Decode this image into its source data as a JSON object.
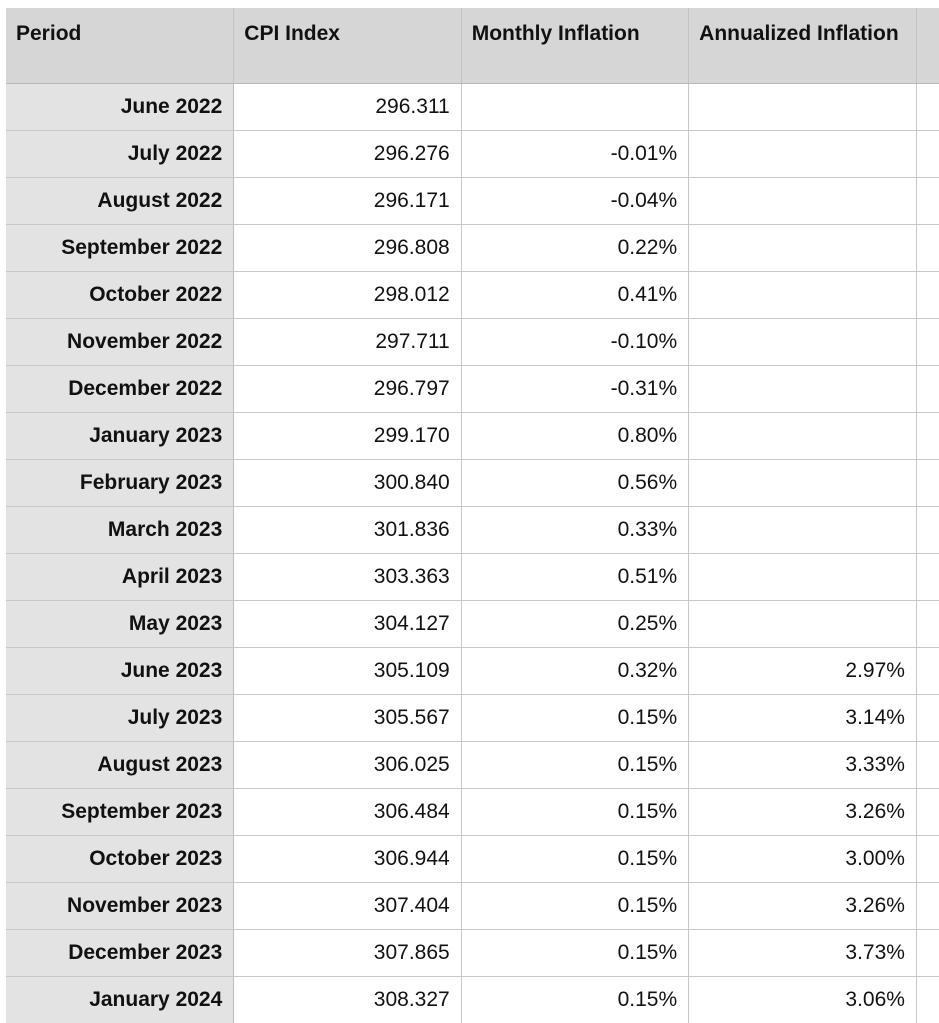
{
  "table": {
    "headers": [
      "Period",
      "CPI Index",
      "Monthly Inflation",
      "Annualized Inflation"
    ],
    "rows": [
      [
        "June 2022",
        "296.311",
        null,
        null
      ],
      [
        "July 2022",
        "296.276",
        "-0.01%",
        null
      ],
      [
        "August 2022",
        "296.171",
        "-0.04%",
        null
      ],
      [
        "September 2022",
        "296.808",
        "0.22%",
        null
      ],
      [
        "October 2022",
        "298.012",
        "0.41%",
        null
      ],
      [
        "November 2022",
        "297.711",
        "-0.10%",
        null
      ],
      [
        "December 2022",
        "296.797",
        "-0.31%",
        null
      ],
      [
        "January 2023",
        "299.170",
        "0.80%",
        null
      ],
      [
        "February 2023",
        "300.840",
        "0.56%",
        null
      ],
      [
        "March 2023",
        "301.836",
        "0.33%",
        null
      ],
      [
        "April 2023",
        "303.363",
        "0.51%",
        null
      ],
      [
        "May 2023",
        "304.127",
        "0.25%",
        null
      ],
      [
        "June 2023",
        "305.109",
        "0.32%",
        "2.97%"
      ],
      [
        "July 2023",
        "305.567",
        "0.15%",
        "3.14%"
      ],
      [
        "August 2023",
        "306.025",
        "0.15%",
        "3.33%"
      ],
      [
        "September 2023",
        "306.484",
        "0.15%",
        "3.26%"
      ],
      [
        "October 2023",
        "306.944",
        "0.15%",
        "3.00%"
      ],
      [
        "November 2023",
        "307.404",
        "0.15%",
        "3.26%"
      ],
      [
        "December 2023",
        "307.865",
        "0.15%",
        "3.73%"
      ],
      [
        "January 2024",
        "308.327",
        "0.15%",
        "3.06%"
      ]
    ]
  }
}
